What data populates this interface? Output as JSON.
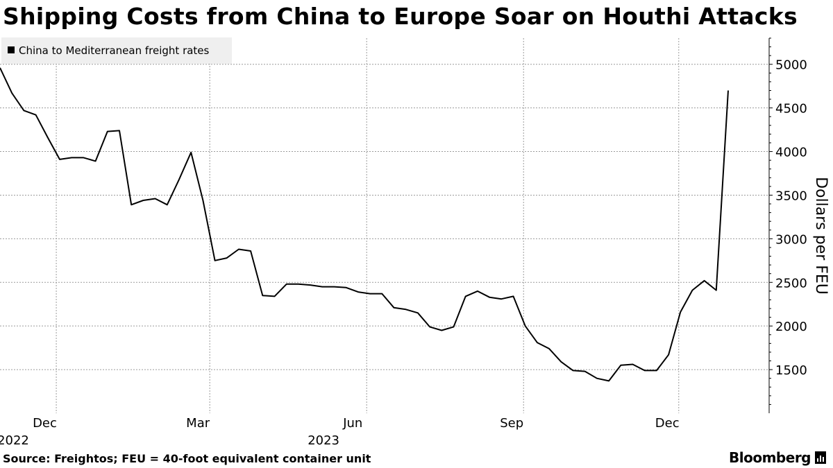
{
  "chart_data": {
    "type": "line",
    "title": "Shipping Costs from China to Europe Soar on Houthi Attacks",
    "legend": [
      "China to Mediterranean freight rates"
    ],
    "legend_placement": "top-left",
    "ylabel": "Dollars per FEU",
    "ylim": [
      1000,
      5300
    ],
    "yticks": [
      1500,
      2000,
      2500,
      3000,
      3500,
      4000,
      4500,
      5000
    ],
    "xlim": [
      "2022-10-29",
      "2024-01-23"
    ],
    "x_tick_dates": [
      "2022-12-01",
      "2023-03-01",
      "2023-06-01",
      "2023-09-01",
      "2023-12-01"
    ],
    "x_tick_labels": [
      "Dec",
      "Mar",
      "Jun",
      "Sep",
      "Dec"
    ],
    "x_year_labels": [
      {
        "date": "2022-12-01",
        "label": "2022"
      },
      {
        "date": "2023-06-01",
        "label": "2023"
      }
    ],
    "grid": true,
    "series": [
      {
        "name": "China to Mediterranean freight rates",
        "x": [
          "2022-10-29",
          "2022-11-05",
          "2022-11-12",
          "2022-11-19",
          "2022-11-26",
          "2022-12-03",
          "2022-12-10",
          "2022-12-17",
          "2022-12-24",
          "2022-12-31",
          "2023-01-07",
          "2023-01-14",
          "2023-01-21",
          "2023-01-28",
          "2023-02-04",
          "2023-02-11",
          "2023-02-18",
          "2023-02-25",
          "2023-03-04",
          "2023-03-11",
          "2023-03-18",
          "2023-03-25",
          "2023-04-01",
          "2023-04-08",
          "2023-04-15",
          "2023-04-22",
          "2023-04-29",
          "2023-05-06",
          "2023-05-13",
          "2023-05-20",
          "2023-05-27",
          "2023-06-03",
          "2023-06-10",
          "2023-06-17",
          "2023-06-24",
          "2023-07-01",
          "2023-07-08",
          "2023-07-15",
          "2023-07-22",
          "2023-07-29",
          "2023-08-05",
          "2023-08-12",
          "2023-08-19",
          "2023-08-26",
          "2023-09-02",
          "2023-09-09",
          "2023-09-16",
          "2023-09-23",
          "2023-09-30",
          "2023-10-07",
          "2023-10-14",
          "2023-10-21",
          "2023-10-28",
          "2023-11-04",
          "2023-11-11",
          "2023-11-18",
          "2023-11-25",
          "2023-12-02",
          "2023-12-09",
          "2023-12-16",
          "2023-12-23",
          "2023-12-30",
          "2024-01-06"
        ],
        "values": [
          4960,
          4670,
          4470,
          4420,
          4160,
          3910,
          3930,
          3930,
          3890,
          4230,
          4240,
          3390,
          3440,
          3460,
          3390,
          3680,
          3990,
          3440,
          2750,
          2780,
          2880,
          2860,
          2350,
          2340,
          2480,
          2480,
          2470,
          2450,
          2450,
          2440,
          2390,
          2370,
          2370,
          2210,
          2190,
          2150,
          1990,
          1950,
          1990,
          2340,
          2400,
          2330,
          2310,
          2340,
          2000,
          1810,
          1740,
          1590,
          1490,
          1480,
          1400,
          1370,
          1550,
          1560,
          1490,
          1490,
          1670,
          2160,
          2410,
          2520,
          2410,
          4700,
          null
        ]
      }
    ]
  },
  "footer": {
    "source": "Source: Freightos; FEU = 40-foot equivalent container unit",
    "brand": "Bloomberg"
  }
}
